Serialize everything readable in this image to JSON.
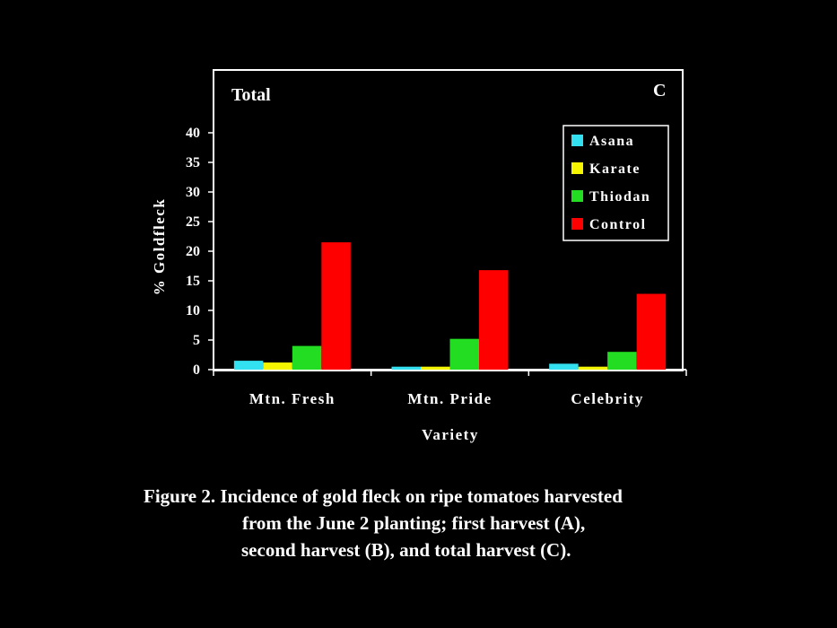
{
  "chart_data": {
    "type": "bar",
    "panel_title": "Total",
    "panel_letter": "C",
    "categories": [
      "Mtn. Fresh",
      "Mtn. Pride",
      "Celebrity"
    ],
    "series": [
      {
        "name": "Asana",
        "color": "#33e0f0",
        "values": [
          1.5,
          0.5,
          1.0
        ]
      },
      {
        "name": "Karate",
        "color": "#f5f500",
        "values": [
          1.2,
          0.5,
          0.5
        ]
      },
      {
        "name": "Thiodan",
        "color": "#22dd22",
        "values": [
          4.0,
          5.2,
          3.0
        ]
      },
      {
        "name": "Control",
        "color": "#ff0000",
        "values": [
          21.5,
          16.8,
          12.8
        ]
      }
    ],
    "ylabel": "% Goldfleck",
    "xlabel": "Variety",
    "ylim": [
      0,
      40
    ],
    "yticks": [
      "0",
      "5",
      "10",
      "15",
      "20",
      "25",
      "30",
      "35",
      "40"
    ],
    "legend_position": "top-right",
    "grid": false
  },
  "caption": {
    "line1": "Figure 2.  Incidence of gold fleck on ripe tomatoes harvested",
    "line2": "from the June 2 planting;  first harvest (A),",
    "line3": "second harvest (B), and total harvest (C)."
  }
}
